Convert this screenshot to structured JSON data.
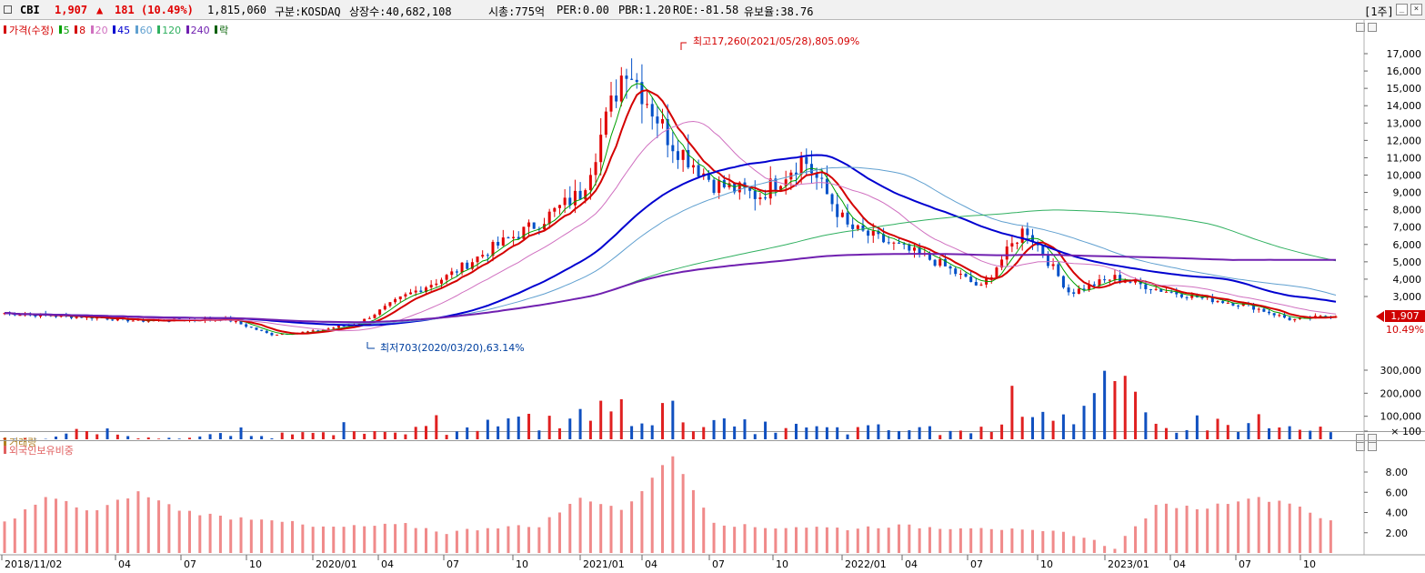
{
  "header": {
    "ticker": "CBI",
    "price": "1,907",
    "change_icon": "triangle-up-icon",
    "change": "181",
    "change_pct": "(10.49%)",
    "volume": "1,815,060",
    "market": "구분:KOSDAQ",
    "shares": "상장수:40,682,108",
    "mcap": "시총:775억",
    "per": "PER:0.00",
    "pbr": "PBR:1.20",
    "roe": "ROE:-81.58",
    "float": "유보율:38.76",
    "period": "[1주]",
    "colors": {
      "up": "#e00000",
      "down": "#0050c8"
    }
  },
  "legend": [
    {
      "label": "가격(수정)",
      "color": "#d40000"
    },
    {
      "label": "5",
      "color": "#00a000"
    },
    {
      "label": "8",
      "color": "#d40000"
    },
    {
      "label": "20",
      "color": "#d070c0"
    },
    {
      "label": "45",
      "color": "#0000d0"
    },
    {
      "label": "60",
      "color": "#60a0d0"
    },
    {
      "label": "120",
      "color": "#30b060"
    },
    {
      "label": "240",
      "color": "#7020b0"
    },
    {
      "label": "락",
      "color": "#006000"
    }
  ],
  "panes": {
    "volume_title": "거래량",
    "foreign_title": "외국인보유비중"
  },
  "price_axis": {
    "ticks": [
      "17,000",
      "16,000",
      "15,000",
      "14,000",
      "13,000",
      "12,000",
      "11,000",
      "10,000",
      "9,000",
      "8,000",
      "7,000",
      "6,000",
      "5,000",
      "4,000",
      "3,000"
    ],
    "tick_values": [
      17000,
      16000,
      15000,
      14000,
      13000,
      12000,
      11000,
      10000,
      9000,
      8000,
      7000,
      6000,
      5000,
      4000,
      3000
    ],
    "current_price": "1,907",
    "current_pct": "10.49%"
  },
  "volume_axis": {
    "ticks": [
      "300,000",
      "200,000",
      "100,000",
      "× 100"
    ],
    "tick_values": [
      300000,
      200000,
      100000
    ]
  },
  "foreign_axis": {
    "ticks": [
      "8.00",
      "6.00",
      "4.00",
      "2.00"
    ],
    "tick_values": [
      8,
      6,
      4,
      2
    ]
  },
  "x_axis": {
    "labels": [
      "2018/11/02",
      "04",
      "07",
      "10",
      "2020/01",
      "04",
      "07",
      "10",
      "2021/01",
      "04",
      "07",
      "10",
      "2022/01",
      "04",
      "07",
      "10",
      "2023/01",
      "04",
      "07",
      "10"
    ]
  },
  "annotations": {
    "high": "최고17,260(2021/05/28),805.09%",
    "low": "최저703(2020/03/20),63.14%"
  },
  "chart_data": [
    {
      "type": "line",
      "title": "",
      "description_series": "weekly adjusted close (approx.)",
      "x": [
        "2018-11",
        "2019-02",
        "2019-05",
        "2019-08",
        "2019-11",
        "2020-01",
        "2020-03",
        "2020-05",
        "2020-07",
        "2020-09",
        "2020-11",
        "2021-01",
        "2021-03",
        "2021-04",
        "2021-05",
        "2021-06",
        "2021-08",
        "2021-10",
        "2021-12",
        "2022-02",
        "2022-04",
        "2022-06",
        "2022-08",
        "2022-09",
        "2022-11",
        "2023-01",
        "2023-03",
        "2023-05",
        "2023-07",
        "2023-09",
        "2023-11"
      ],
      "series": [
        {
          "name": "가격(수정)",
          "values": [
            2050,
            1900,
            1800,
            1600,
            1650,
            1700,
            800,
            1000,
            1500,
            3000,
            4200,
            5800,
            7200,
            9000,
            16500,
            12000,
            9500,
            8800,
            11000,
            7000,
            6000,
            5000,
            3500,
            7000,
            3200,
            4100,
            3400,
            2900,
            2500,
            1650,
            1907
          ]
        }
      ],
      "ylim": [
        700,
        17500
      ]
    },
    {
      "type": "bar",
      "title": "",
      "series": [
        {
          "name": "거래량",
          "values": [
            5000,
            4000,
            60000,
            8000,
            5000,
            30000,
            12000,
            80000,
            25000,
            40000,
            60000,
            90000,
            100000,
            120000,
            160000,
            150000,
            80000,
            70000,
            60000,
            50000,
            60000,
            40000,
            50000,
            260000,
            120000,
            290000,
            60000,
            100000,
            70000,
            60000,
            40000
          ]
        }
      ],
      "ylim": [
        0,
        330000
      ]
    },
    {
      "type": "bar",
      "title": "",
      "series": [
        {
          "name": "외국인보유비중",
          "values": [
            3.0,
            5.6,
            4.0,
            6.0,
            4.2,
            3.5,
            3.4,
            2.5,
            2.6,
            2.8,
            2.0,
            2.6,
            2.6,
            5.5,
            4.2,
            9.8,
            3.0,
            2.5,
            2.6,
            2.4,
            2.7,
            2.5,
            2.6,
            2.1,
            2.0,
            0.5,
            4.8,
            4.4,
            5.5,
            5.0,
            2.8
          ]
        }
      ],
      "ylim": [
        0,
        10
      ]
    }
  ]
}
